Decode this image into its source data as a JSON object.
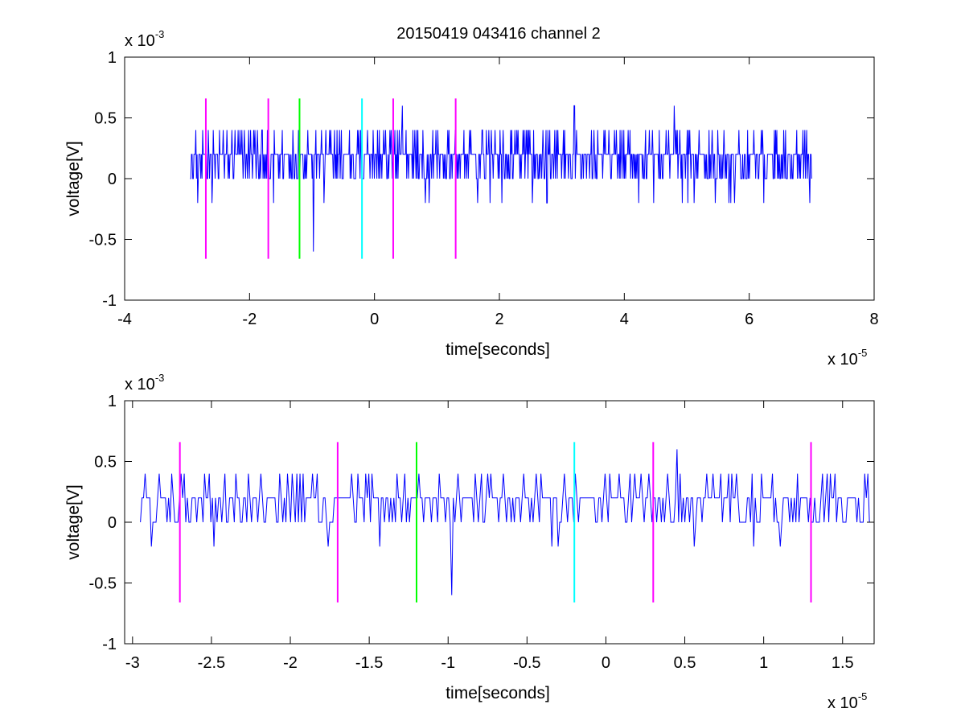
{
  "title": "20150419 043416 channel 2",
  "colors": {
    "signal": "#0000ff",
    "marker_magenta": "#ff00ff",
    "marker_green": "#00ff00",
    "marker_cyan": "#00ffff",
    "axes": "#000000",
    "background": "#ffffff"
  },
  "chart_data": [
    {
      "type": "line",
      "title": "20150419 043416 channel 2",
      "xlabel": "time[seconds]",
      "ylabel": "voltage[V]",
      "x_exponent_label": "x 10",
      "x_exponent": "-5",
      "y_exponent_label": "x 10",
      "y_exponent": "-3",
      "xlim": [
        -4e-05,
        8e-05
      ],
      "ylim": [
        -0.001,
        0.001
      ],
      "xticks": [
        -4e-05,
        -2e-05,
        0,
        2e-05,
        4e-05,
        6e-05,
        8e-05
      ],
      "xtick_labels": [
        "-4",
        "-2",
        "0",
        "2",
        "4",
        "6",
        "8"
      ],
      "yticks": [
        -0.001,
        -0.0005,
        0,
        0.0005,
        0.001
      ],
      "ytick_labels": [
        "-1",
        "-0.5",
        "0",
        "0.5",
        "1"
      ],
      "grid": false,
      "series": [
        {
          "color": "#0000ff",
          "x_range": [
            -2.95e-05,
            7e-05
          ],
          "quantization": 0.0002,
          "points": 1000,
          "spikes": [
            {
              "x": -9.8e-06,
              "y": -0.0006
            },
            {
              "x": 4.5e-06,
              "y": 0.0006
            },
            {
              "x": 4.8e-05,
              "y": 0.0006
            },
            {
              "x": 3.2e-05,
              "y": 0.0006
            }
          ]
        }
      ],
      "markers": [
        {
          "x": -2.7e-05,
          "color": "#ff00ff",
          "ymin": -0.00066,
          "ymax": 0.00066
        },
        {
          "x": -1.7e-05,
          "color": "#ff00ff",
          "ymin": -0.00066,
          "ymax": 0.00066
        },
        {
          "x": -1.2e-05,
          "color": "#00ff00",
          "ymin": -0.00066,
          "ymax": 0.00066
        },
        {
          "x": -2e-06,
          "color": "#00ffff",
          "ymin": -0.00066,
          "ymax": 0.00066
        },
        {
          "x": 3e-06,
          "color": "#ff00ff",
          "ymin": -0.00066,
          "ymax": 0.00066
        },
        {
          "x": 1.3e-05,
          "color": "#ff00ff",
          "ymin": -0.00066,
          "ymax": 0.00066
        }
      ]
    },
    {
      "type": "line",
      "title": "",
      "xlabel": "time[seconds]",
      "ylabel": "voltage[V]",
      "x_exponent_label": "x 10",
      "x_exponent": "-5",
      "y_exponent_label": "x 10",
      "y_exponent": "-3",
      "xlim": [
        -3.05e-05,
        1.7e-05
      ],
      "ylim": [
        -0.001,
        0.001
      ],
      "xticks": [
        -3e-05,
        -2.5e-05,
        -2e-05,
        -1.5e-05,
        -1e-05,
        -5e-06,
        0,
        5e-06,
        1e-05,
        1.5e-05
      ],
      "xtick_labels": [
        "-3",
        "-2.5",
        "-2",
        "-1.5",
        "-1",
        "-0.5",
        "0",
        "0.5",
        "1",
        "1.5"
      ],
      "yticks": [
        -0.001,
        -0.0005,
        0,
        0.0005,
        0.001
      ],
      "ytick_labels": [
        "-1",
        "-0.5",
        "0",
        "0.5",
        "1"
      ],
      "grid": false,
      "series": [
        {
          "color": "#0000ff",
          "x_range": [
            -2.95e-05,
            1.7e-05
          ],
          "quantization": 0.0002,
          "points": 470,
          "spikes": [
            {
              "x": -9.8e-06,
              "y": -0.0006
            },
            {
              "x": 4.5e-06,
              "y": 0.0006
            }
          ]
        }
      ],
      "markers": [
        {
          "x": -2.7e-05,
          "color": "#ff00ff",
          "ymin": -0.00066,
          "ymax": 0.00066
        },
        {
          "x": -1.7e-05,
          "color": "#ff00ff",
          "ymin": -0.00066,
          "ymax": 0.00066
        },
        {
          "x": -1.2e-05,
          "color": "#00ff00",
          "ymin": -0.00066,
          "ymax": 0.00066
        },
        {
          "x": -2e-06,
          "color": "#00ffff",
          "ymin": -0.00066,
          "ymax": 0.00066
        },
        {
          "x": 3e-06,
          "color": "#ff00ff",
          "ymin": -0.00066,
          "ymax": 0.00066
        },
        {
          "x": 1.3e-05,
          "color": "#ff00ff",
          "ymin": -0.00066,
          "ymax": 0.00066
        }
      ]
    }
  ]
}
